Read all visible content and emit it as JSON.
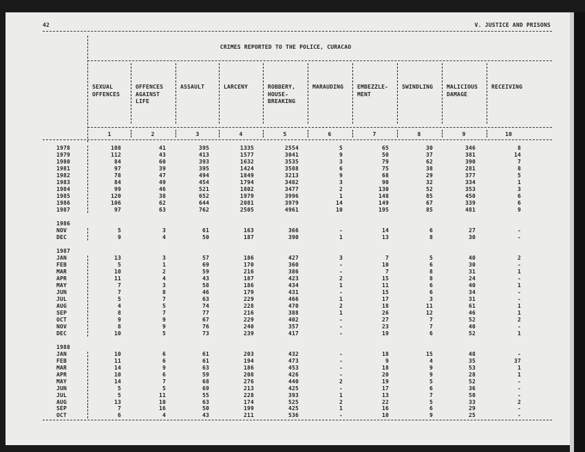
{
  "page": {
    "number": "42",
    "section": "V. JUSTICE AND PRISONS"
  },
  "table": {
    "title": "CRIMES REPORTED TO THE POLICE, CURACAO",
    "columns": [
      {
        "label": [
          "SEXUAL",
          "OFFENCES"
        ],
        "num": "1"
      },
      {
        "label": [
          "OFFENCES",
          "AGAINST",
          "LIFE"
        ],
        "num": "2"
      },
      {
        "label": [
          "ASSAULT"
        ],
        "num": "3"
      },
      {
        "label": [
          "LARCENY"
        ],
        "num": "4"
      },
      {
        "label": [
          "ROBBERY,",
          "HOUSE-",
          "BREAKING"
        ],
        "num": "5"
      },
      {
        "label": [
          "MARAUDING"
        ],
        "num": "6"
      },
      {
        "label": [
          "EMBEZZLE-",
          "MENT"
        ],
        "num": "7"
      },
      {
        "label": [
          "SWINDLING"
        ],
        "num": "8"
      },
      {
        "label": [
          "MALICIOUS",
          "DAMAGE"
        ],
        "num": "9"
      },
      {
        "label": [
          "RECEIVING"
        ],
        "num": "10"
      }
    ],
    "rows": [
      {
        "label": "1978",
        "v": [
          "108",
          "41",
          "395",
          "1335",
          "2554",
          "5",
          "65",
          "30",
          "346",
          "8"
        ]
      },
      {
        "label": "1979",
        "v": [
          "112",
          "43",
          "413",
          "1577",
          "3041",
          "9",
          "50",
          "37",
          "381",
          "14"
        ]
      },
      {
        "label": "1980",
        "v": [
          "84",
          "60",
          "393",
          "1632",
          "3535",
          "3",
          "79",
          "62",
          "390",
          "7"
        ]
      },
      {
        "label": "1981",
        "v": [
          "97",
          "39",
          "395",
          "1424",
          "3588",
          "6",
          "75",
          "38",
          "281",
          "8"
        ]
      },
      {
        "label": "1982",
        "v": [
          "78",
          "47",
          "494",
          "1849",
          "3213",
          "9",
          "68",
          "29",
          "377",
          "5"
        ]
      },
      {
        "label": "1983",
        "v": [
          "84",
          "49",
          "454",
          "1794",
          "3482",
          "3",
          "90",
          "32",
          "334",
          "1"
        ]
      },
      {
        "label": "1984",
        "v": [
          "99",
          "46",
          "521",
          "1802",
          "3477",
          "2",
          "130",
          "52",
          "353",
          "3"
        ]
      },
      {
        "label": "1985",
        "v": [
          "120",
          "38",
          "652",
          "1979",
          "3996",
          "1",
          "148",
          "85",
          "450",
          "6"
        ]
      },
      {
        "label": "1986",
        "v": [
          "106",
          "62",
          "644",
          "2081",
          "3979",
          "14",
          "149",
          "67",
          "339",
          "6"
        ]
      },
      {
        "label": "1987",
        "v": [
          "97",
          "63",
          "762",
          "2505",
          "4961",
          "10",
          "195",
          "85",
          "481",
          "9"
        ]
      },
      {
        "gap": true
      },
      {
        "label": "1986",
        "heading": true
      },
      {
        "label": "NOV",
        "v": [
          "5",
          "3",
          "61",
          "163",
          "366",
          "-",
          "14",
          "6",
          "27",
          "-"
        ]
      },
      {
        "label": "DEC",
        "v": [
          "9",
          "4",
          "50",
          "187",
          "390",
          "1",
          "13",
          "8",
          "30",
          "-"
        ]
      },
      {
        "gap": true
      },
      {
        "label": "1987",
        "heading": true
      },
      {
        "label": "JAN",
        "v": [
          "13",
          "3",
          "57",
          "186",
          "427",
          "3",
          "7",
          "5",
          "40",
          "2"
        ]
      },
      {
        "label": "FEB",
        "v": [
          "5",
          "1",
          "69",
          "170",
          "360",
          "-",
          "10",
          "6",
          "30",
          "-"
        ]
      },
      {
        "label": "MAR",
        "v": [
          "10",
          "2",
          "59",
          "216",
          "386",
          "-",
          "7",
          "8",
          "31",
          "1"
        ]
      },
      {
        "label": "APR",
        "v": [
          "11",
          "4",
          "43",
          "187",
          "423",
          "2",
          "15",
          "8",
          "24",
          "-"
        ]
      },
      {
        "label": "MAY",
        "v": [
          "7",
          "3",
          "58",
          "186",
          "434",
          "1",
          "11",
          "6",
          "40",
          "1"
        ]
      },
      {
        "label": "JUN",
        "v": [
          "7",
          "8",
          "46",
          "179",
          "431",
          "-",
          "15",
          "6",
          "34",
          "-"
        ]
      },
      {
        "label": "JUL",
        "v": [
          "5",
          "7",
          "63",
          "229",
          "466",
          "1",
          "17",
          "3",
          "31",
          "-"
        ]
      },
      {
        "label": "AUG",
        "v": [
          "4",
          "5",
          "74",
          "228",
          "470",
          "2",
          "18",
          "11",
          "61",
          "1"
        ]
      },
      {
        "label": "SEP",
        "v": [
          "8",
          "7",
          "77",
          "216",
          "388",
          "1",
          "26",
          "12",
          "46",
          "1"
        ]
      },
      {
        "label": "OCT",
        "v": [
          "9",
          "9",
          "67",
          "229",
          "402",
          "-",
          "27",
          "7",
          "52",
          "2"
        ]
      },
      {
        "label": "NOV",
        "v": [
          "8",
          "9",
          "76",
          "240",
          "357",
          "-",
          "23",
          "7",
          "40",
          "-"
        ]
      },
      {
        "label": "DEC",
        "v": [
          "10",
          "5",
          "73",
          "239",
          "417",
          "-",
          "19",
          "6",
          "52",
          "1"
        ]
      },
      {
        "gap": true
      },
      {
        "label": "1988",
        "heading": true
      },
      {
        "label": "JAN",
        "v": [
          "10",
          "6",
          "61",
          "203",
          "432",
          "-",
          "18",
          "15",
          "48",
          "-"
        ]
      },
      {
        "label": "FEB",
        "v": [
          "11",
          "6",
          "61",
          "194",
          "473",
          "-",
          "9",
          "4",
          "35",
          "37"
        ]
      },
      {
        "label": "MAR",
        "v": [
          "14",
          "9",
          "63",
          "186",
          "453",
          "-",
          "18",
          "9",
          "53",
          "1"
        ]
      },
      {
        "label": "APR",
        "v": [
          "10",
          "6",
          "59",
          "208",
          "426",
          "-",
          "20",
          "9",
          "28",
          "1"
        ]
      },
      {
        "label": "MAY",
        "v": [
          "14",
          "7",
          "68",
          "276",
          "440",
          "2",
          "19",
          "5",
          "52",
          "-"
        ]
      },
      {
        "label": "JUN",
        "v": [
          "5",
          "5",
          "69",
          "213",
          "425",
          "-",
          "17",
          "6",
          "36",
          "-"
        ]
      },
      {
        "label": "JUL",
        "v": [
          "5",
          "11",
          "55",
          "228",
          "393",
          "1",
          "13",
          "7",
          "50",
          "-"
        ]
      },
      {
        "label": "AUG",
        "v": [
          "13",
          "10",
          "63",
          "174",
          "525",
          "2",
          "22",
          "5",
          "33",
          "2"
        ]
      },
      {
        "label": "SEP",
        "v": [
          "7",
          "16",
          "50",
          "199",
          "425",
          "1",
          "16",
          "6",
          "29",
          "-"
        ]
      },
      {
        "label": "OCT",
        "v": [
          "6",
          "4",
          "43",
          "211",
          "536",
          "-",
          "10",
          "9",
          "25",
          "-"
        ]
      }
    ]
  }
}
